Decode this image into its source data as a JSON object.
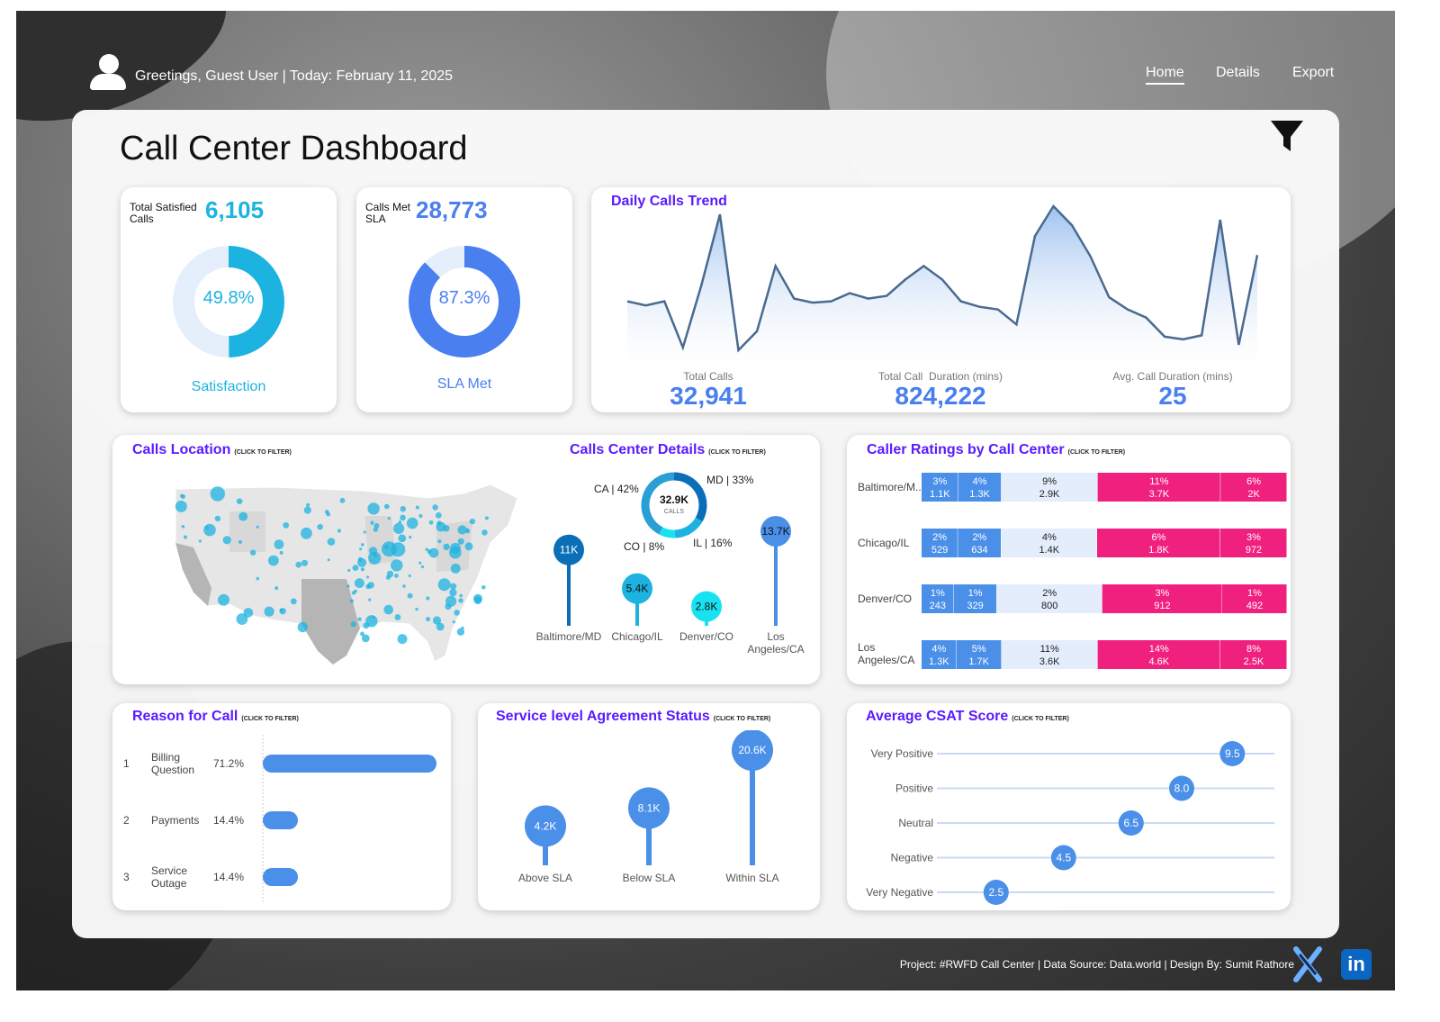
{
  "header": {
    "greeting": "Greetings, Guest User | Today: February 11, 2025",
    "nav": [
      {
        "label": "Home"
      },
      {
        "label": "Details"
      },
      {
        "label": "Export"
      }
    ]
  },
  "title": "Call Center Dashboard",
  "satisfaction": {
    "label": "Total Satisfied Calls",
    "value": "6,105",
    "percent_label": "49.8%",
    "percent": 49.8,
    "caption": "Satisfaction",
    "color": "#1cb3e0"
  },
  "sla": {
    "label": "Calls Met SLA",
    "value": "28,773",
    "percent_label": "87.3%",
    "percent": 87.3,
    "caption": "SLA Met",
    "color": "#4a7ff0"
  },
  "trend": {
    "title": "Daily Calls Trend",
    "kpis": [
      {
        "label": "Total Calls",
        "value": "32,941"
      },
      {
        "label": "Total Call  Duration (mins)",
        "value": "824,222"
      },
      {
        "label": "Avg. Call Duration (mins)",
        "value": "25"
      }
    ],
    "chart_data": {
      "type": "area",
      "title": "Daily Calls Trend",
      "series": [
        {
          "name": "Calls",
          "values": [
            1060,
            1045,
            1060,
            890,
            1120,
            1380,
            880,
            950,
            1190,
            1070,
            1055,
            1060,
            1090,
            1070,
            1080,
            1140,
            1190,
            1140,
            1060,
            1040,
            1030,
            975,
            1300,
            1410,
            1340,
            1225,
            1075,
            1030,
            1000,
            930,
            920,
            935,
            1360,
            900,
            1230
          ]
        }
      ],
      "ylim": [
        850,
        1430
      ]
    }
  },
  "location": {
    "title": "Calls Location",
    "hint": "(CLICK TO FILTER)"
  },
  "centers": {
    "title": "Calls Center Details",
    "hint": "(CLICK TO FILTER)",
    "donut_total": "32.9K",
    "donut_sub": "CALLS",
    "chart_data": {
      "type": "pie",
      "categories": [
        "CA",
        "MD",
        "IL",
        "CO"
      ],
      "values": [
        42,
        33,
        16,
        8
      ],
      "labels": [
        "CA | 42%",
        "MD | 33%",
        "IL | 16%",
        "CO | 8%"
      ],
      "colors": [
        "#2a9fd6",
        "#0b6fb8",
        "#1cb3e0",
        "#19e2f0"
      ]
    },
    "lollipops": [
      {
        "name": "Baltimore/MD",
        "label": "11K",
        "value": 11,
        "color": "#0b6fb8"
      },
      {
        "name": "Chicago/IL",
        "label": "5.4K",
        "value": 5.4,
        "color": "#1cb3e0"
      },
      {
        "name": "Denver/CO",
        "label": "2.8K",
        "value": 2.8,
        "color": "#19e2f0"
      },
      {
        "name": "Los Angeles/CA",
        "label": "13.7K",
        "value": 13.7,
        "color": "#4a8fe8"
      }
    ]
  },
  "ratings": {
    "title": "Caller Ratings by Call Center",
    "hint": "(CLICK TO FILTER)",
    "chart_data": {
      "type": "bar",
      "stacked": true,
      "categories": [
        "Baltimore/MD",
        "Chicago/IL",
        "Denver/CO",
        "Los Angeles/CA"
      ],
      "display_names": [
        "Baltimore/M..",
        "Chicago/IL",
        "Denver/CO",
        "Los Angeles/CA"
      ],
      "rows": [
        {
          "segments": [
            {
              "pct": "3%",
              "count": "1.1K",
              "v": 1.1
            },
            {
              "pct": "4%",
              "count": "1.3K",
              "v": 1.3
            },
            {
              "pct": "9%",
              "count": "2.9K",
              "v": 2.9
            },
            {
              "pct": "11%",
              "count": "3.7K",
              "v": 3.7
            },
            {
              "pct": "6%",
              "count": "2K",
              "v": 2.0
            }
          ]
        },
        {
          "segments": [
            {
              "pct": "2%",
              "count": "529",
              "v": 0.529
            },
            {
              "pct": "2%",
              "count": "634",
              "v": 0.634
            },
            {
              "pct": "4%",
              "count": "1.4K",
              "v": 1.4
            },
            {
              "pct": "6%",
              "count": "1.8K",
              "v": 1.8
            },
            {
              "pct": "3%",
              "count": "972",
              "v": 0.972
            }
          ]
        },
        {
          "segments": [
            {
              "pct": "1%",
              "count": "243",
              "v": 0.243
            },
            {
              "pct": "1%",
              "count": "329",
              "v": 0.329
            },
            {
              "pct": "2%",
              "count": "800",
              "v": 0.8
            },
            {
              "pct": "3%",
              "count": "912",
              "v": 0.912
            },
            {
              "pct": "1%",
              "count": "492",
              "v": 0.492
            }
          ]
        },
        {
          "segments": [
            {
              "pct": "4%",
              "count": "1.3K",
              "v": 1.3
            },
            {
              "pct": "5%",
              "count": "1.7K",
              "v": 1.7
            },
            {
              "pct": "11%",
              "count": "3.6K",
              "v": 3.6
            },
            {
              "pct": "14%",
              "count": "4.6K",
              "v": 4.6
            },
            {
              "pct": "8%",
              "count": "2.5K",
              "v": 2.5
            }
          ]
        }
      ],
      "segment_colors": [
        "#4a8fe8",
        "#4a8fe8",
        "#e3edfb",
        "#f0207f",
        "#f0207f"
      ]
    }
  },
  "reason": {
    "title": "Reason for Call",
    "hint": "(CLICK TO FILTER)",
    "chart_data": {
      "type": "bar",
      "items": [
        {
          "rank": "1",
          "name": "Billing Question",
          "pct": "71.2%",
          "value": 71.2
        },
        {
          "rank": "2",
          "name": "Payments",
          "pct": "14.4%",
          "value": 14.4
        },
        {
          "rank": "3",
          "name": "Service Outage",
          "pct": "14.4%",
          "value": 14.4
        }
      ]
    }
  },
  "sla_status": {
    "title": "Service level Agreement Status",
    "hint": "(CLICK TO FILTER)",
    "chart_data": {
      "type": "bar",
      "items": [
        {
          "name": "Above SLA",
          "label": "4.2K",
          "value": 4.2
        },
        {
          "name": "Below SLA",
          "label": "8.1K",
          "value": 8.1
        },
        {
          "name": "Within SLA",
          "label": "20.6K",
          "value": 20.6
        }
      ]
    }
  },
  "csat": {
    "title": "Average CSAT Score",
    "hint": "(CLICK TO FILTER)",
    "chart_data": {
      "type": "scatter",
      "items": [
        {
          "name": "Very Positive",
          "label": "9.5",
          "value": 9.5
        },
        {
          "name": "Positive",
          "label": "8.0",
          "value": 8.0
        },
        {
          "name": "Neutral",
          "label": "6.5",
          "value": 6.5
        },
        {
          "name": "Negative",
          "label": "4.5",
          "value": 4.5
        },
        {
          "name": "Very Negative",
          "label": "2.5",
          "value": 2.5
        }
      ],
      "xlim": [
        0,
        10
      ]
    }
  },
  "footer": {
    "credits": "Project: #RWFD Call Center | Data Source: Data.world | Design By: Sumit Rathore",
    "linkedin": "in"
  },
  "accent": "#5a1bff",
  "icons": {
    "user": "user-icon",
    "filter": "filter-icon",
    "x": "x-logo-icon",
    "linkedin": "linkedin-icon"
  }
}
